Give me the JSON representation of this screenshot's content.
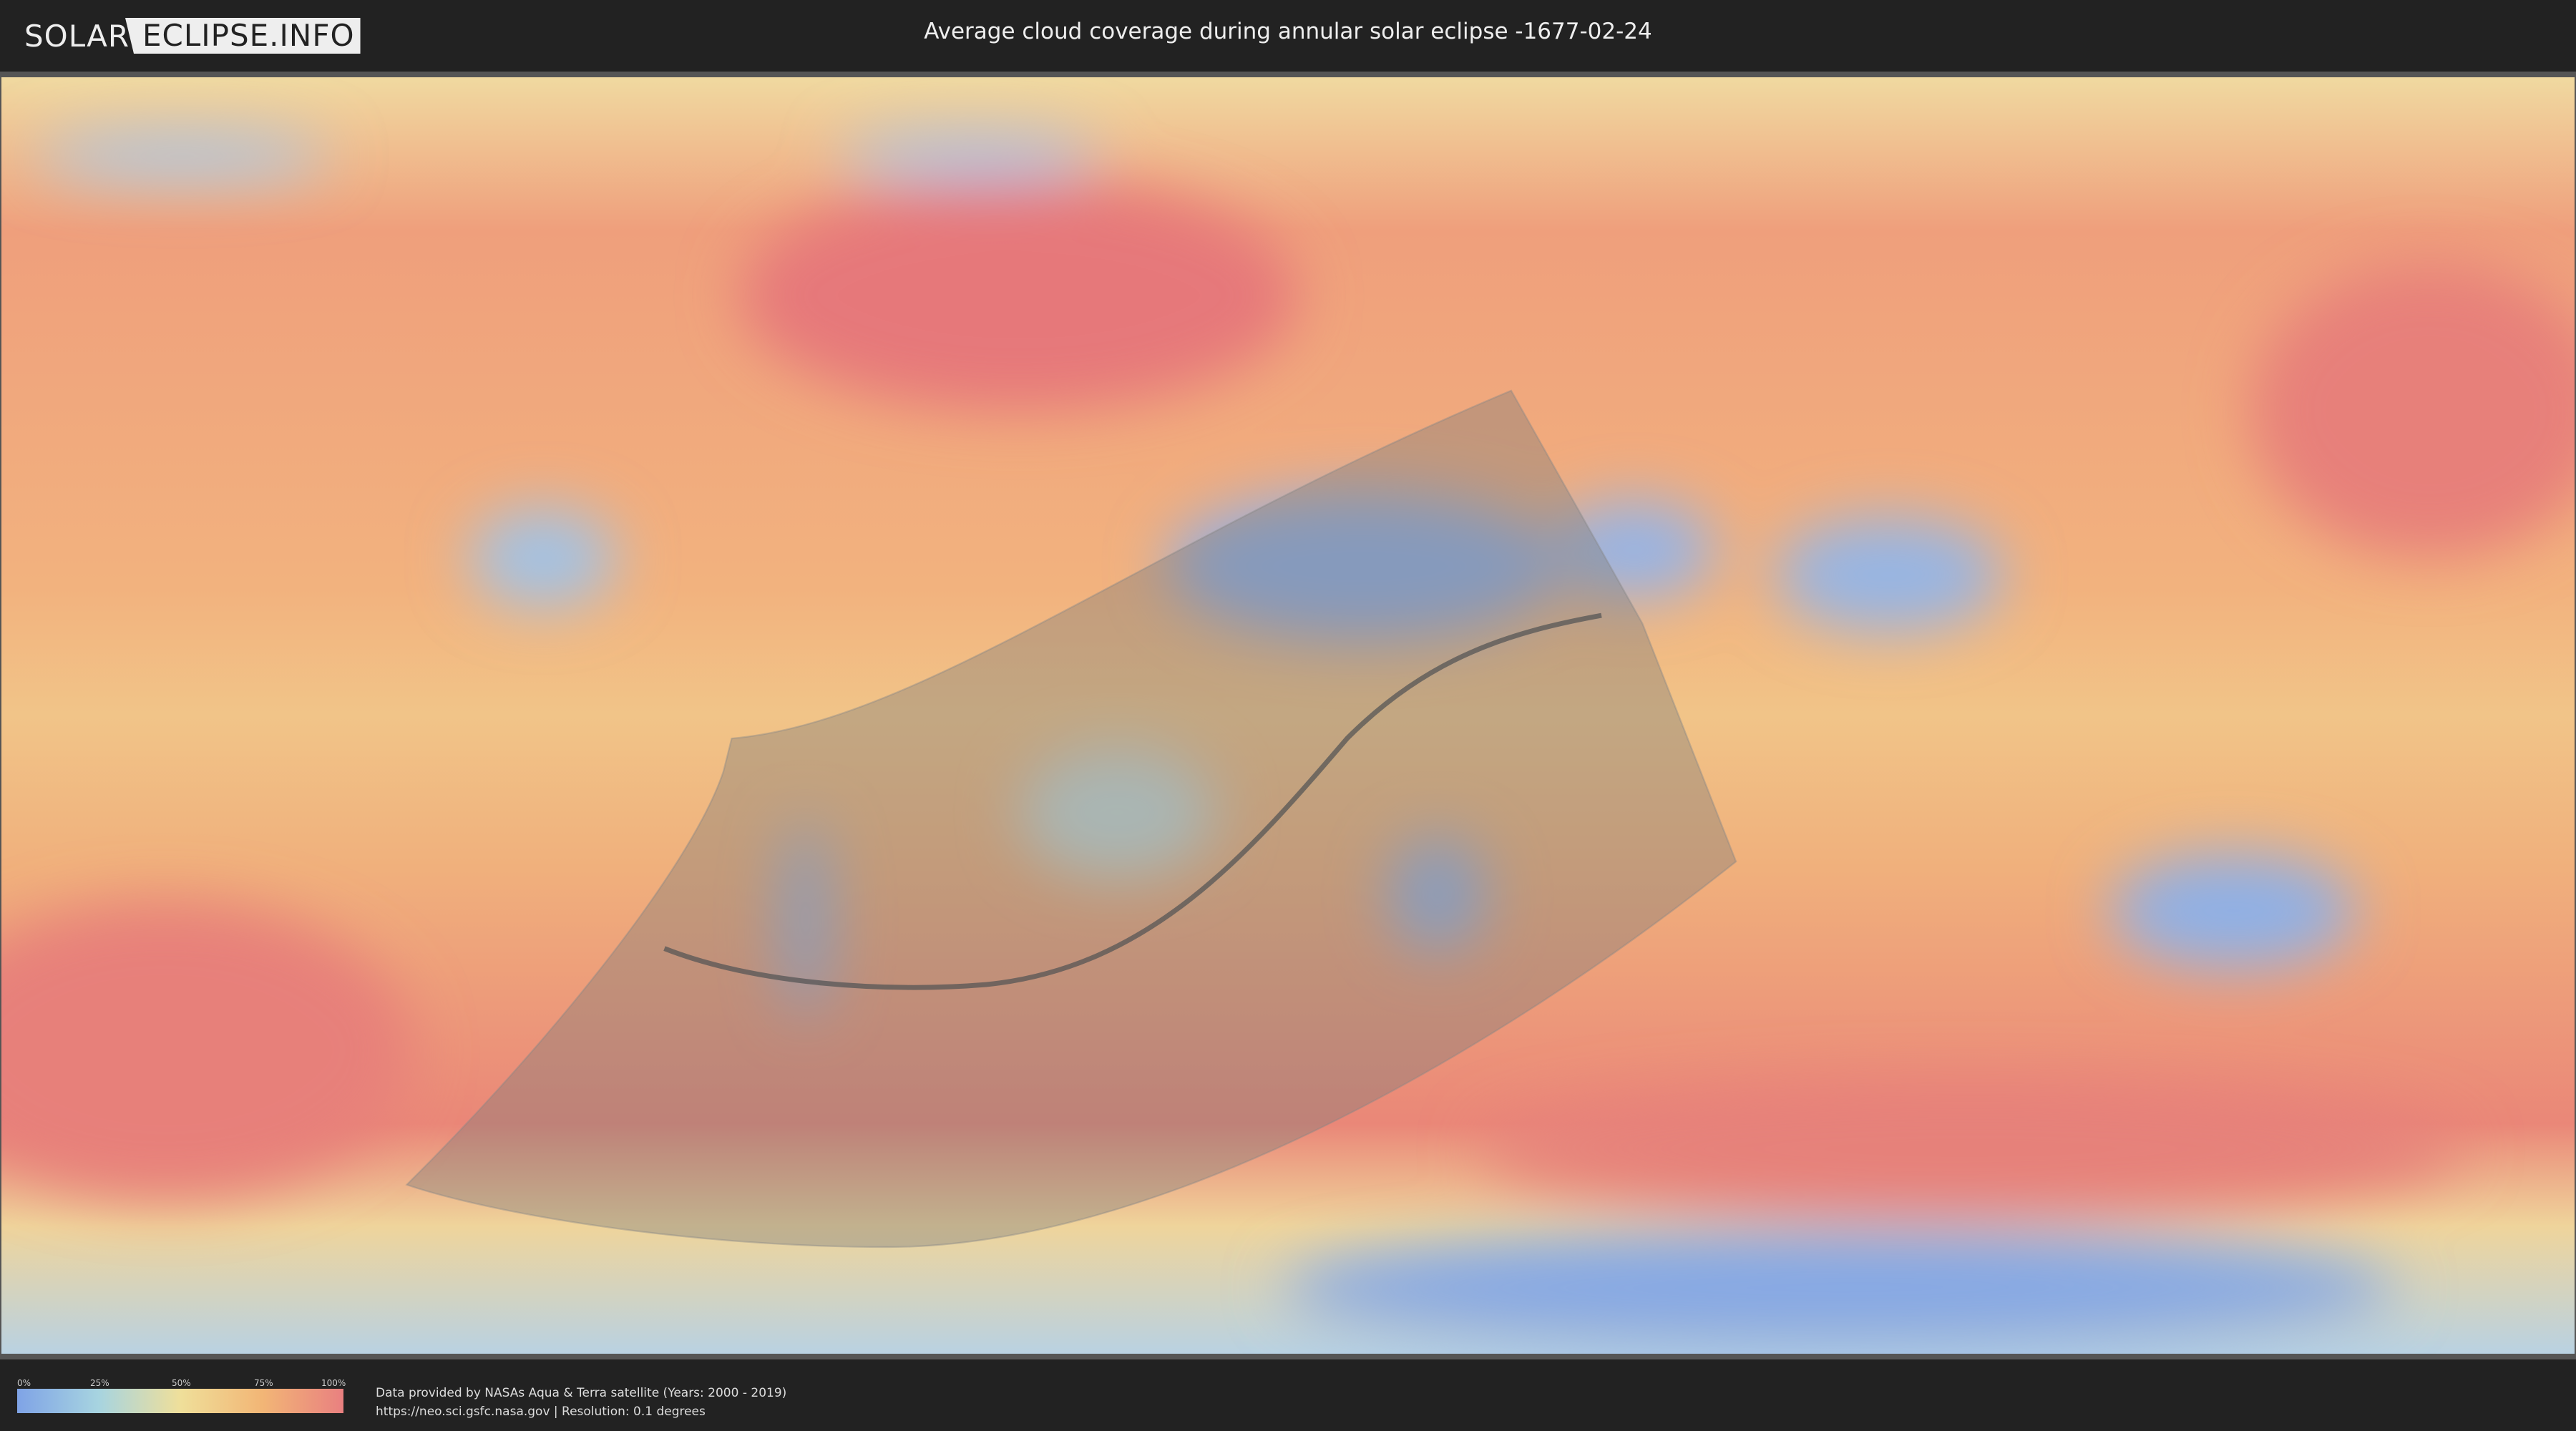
{
  "header": {
    "logo_left": "SOLAR",
    "logo_right": "ECLIPSE.INFO",
    "title": "Average cloud coverage during annular solar eclipse -1677-02-24"
  },
  "legend": {
    "ticks": [
      "0%",
      "25%",
      "50%",
      "75%",
      "100%"
    ],
    "colors": [
      "#7fa3e6",
      "#a7d4e0",
      "#efdf9a",
      "#f2b676",
      "#e98080"
    ]
  },
  "footer": {
    "line1": "Data provided by NASAs Aqua & Terra satellite (Years: 2000 - 2019)",
    "line2": "https://neo.sci.gsfc.nasa.gov | Resolution: 0.1 degrees"
  },
  "map": {
    "shadow_color": "#7a7a7a",
    "central_line_color": "#555555"
  }
}
